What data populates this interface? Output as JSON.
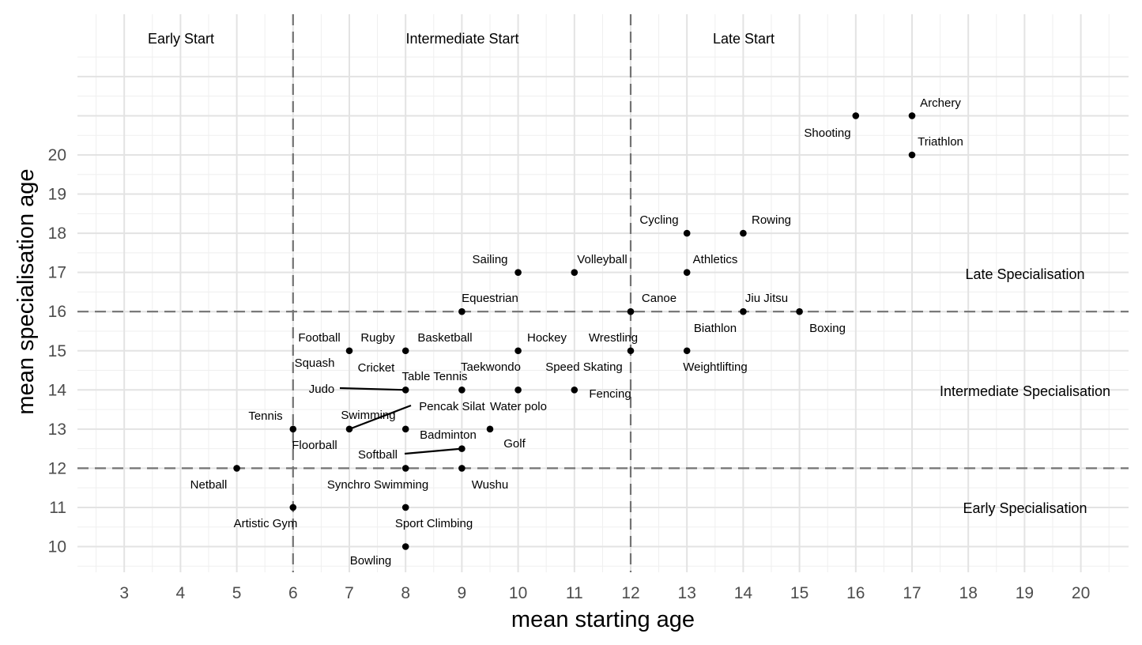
{
  "chart_data": {
    "type": "scatter",
    "title": "",
    "xlabel": "mean starting age",
    "ylabel": "mean specialisation age",
    "xlim": [
      2.5,
      20.5
    ],
    "ylim": [
      9.5,
      22.5
    ],
    "x_ticks": [
      3,
      4,
      5,
      6,
      7,
      8,
      9,
      10,
      11,
      12,
      13,
      14,
      15,
      16,
      17,
      18,
      19,
      20
    ],
    "y_ticks": [
      10,
      11,
      12,
      13,
      14,
      15,
      16,
      17,
      18,
      19,
      20
    ],
    "grid": true,
    "reference_lines": {
      "x": [
        6,
        12
      ],
      "y": [
        12,
        16
      ]
    },
    "zones": {
      "start": [
        "Early Start",
        "Intermediate Start",
        "Late Start"
      ],
      "specialisation": [
        "Late Specialisation",
        "Intermediate Specialisation",
        "Early Specialisation"
      ]
    },
    "points": [
      {
        "label": "Archery",
        "x": 17,
        "y": 21
      },
      {
        "label": "Shooting",
        "x": 16,
        "y": 21
      },
      {
        "label": "Triathlon",
        "x": 17,
        "y": 20
      },
      {
        "label": "Cycling",
        "x": 13,
        "y": 18
      },
      {
        "label": "Rowing",
        "x": 14,
        "y": 18
      },
      {
        "label": "Athletics",
        "x": 13,
        "y": 17
      },
      {
        "label": "Sailing",
        "x": 10,
        "y": 17
      },
      {
        "label": "Volleyball",
        "x": 11,
        "y": 17
      },
      {
        "label": "Equestrian",
        "x": 9,
        "y": 16
      },
      {
        "label": "Canoe",
        "x": 12,
        "y": 16
      },
      {
        "label": "Jiu Jitsu",
        "x": 14,
        "y": 16
      },
      {
        "label": "Boxing",
        "x": 15,
        "y": 16
      },
      {
        "label": "Biathlon",
        "x": 13,
        "y": 15
      },
      {
        "label": "Weightlifting",
        "x": 13,
        "y": 15
      },
      {
        "label": "Wrestling",
        "x": 12,
        "y": 15
      },
      {
        "label": "Speed Skating",
        "x": 12,
        "y": 15
      },
      {
        "label": "Hockey",
        "x": 10,
        "y": 15
      },
      {
        "label": "Basketball",
        "x": 8,
        "y": 15
      },
      {
        "label": "Rugby",
        "x": 8,
        "y": 15
      },
      {
        "label": "Football",
        "x": 7,
        "y": 15
      },
      {
        "label": "Squash",
        "x": 7,
        "y": 15
      },
      {
        "label": "Cricket",
        "x": 8,
        "y": 15
      },
      {
        "label": "Table Tennis",
        "x": 9,
        "y": 14
      },
      {
        "label": "Taekwondo",
        "x": 10,
        "y": 14
      },
      {
        "label": "Water polo",
        "x": 10,
        "y": 14
      },
      {
        "label": "Fencing",
        "x": 11,
        "y": 14
      },
      {
        "label": "Judo",
        "x": 8,
        "y": 14
      },
      {
        "label": "Pencak Silat",
        "x": 7,
        "y": 13
      },
      {
        "label": "Swimming",
        "x": 7,
        "y": 13
      },
      {
        "label": "Tennis",
        "x": 6,
        "y": 13
      },
      {
        "label": "Floorball",
        "x": 6,
        "y": 13
      },
      {
        "label": "Badminton",
        "x": 8,
        "y": 13
      },
      {
        "label": "Golf",
        "x": 9.5,
        "y": 13
      },
      {
        "label": "Softball",
        "x": 9,
        "y": 12.5
      },
      {
        "label": "Netball",
        "x": 5,
        "y": 12
      },
      {
        "label": "Synchro Swimming",
        "x": 8,
        "y": 12
      },
      {
        "label": "Wushu",
        "x": 9,
        "y": 12
      },
      {
        "label": "Artistic Gym",
        "x": 6,
        "y": 11
      },
      {
        "label": "Sport Climbing",
        "x": 8,
        "y": 11
      },
      {
        "label": "Bowling",
        "x": 8,
        "y": 10
      }
    ]
  }
}
